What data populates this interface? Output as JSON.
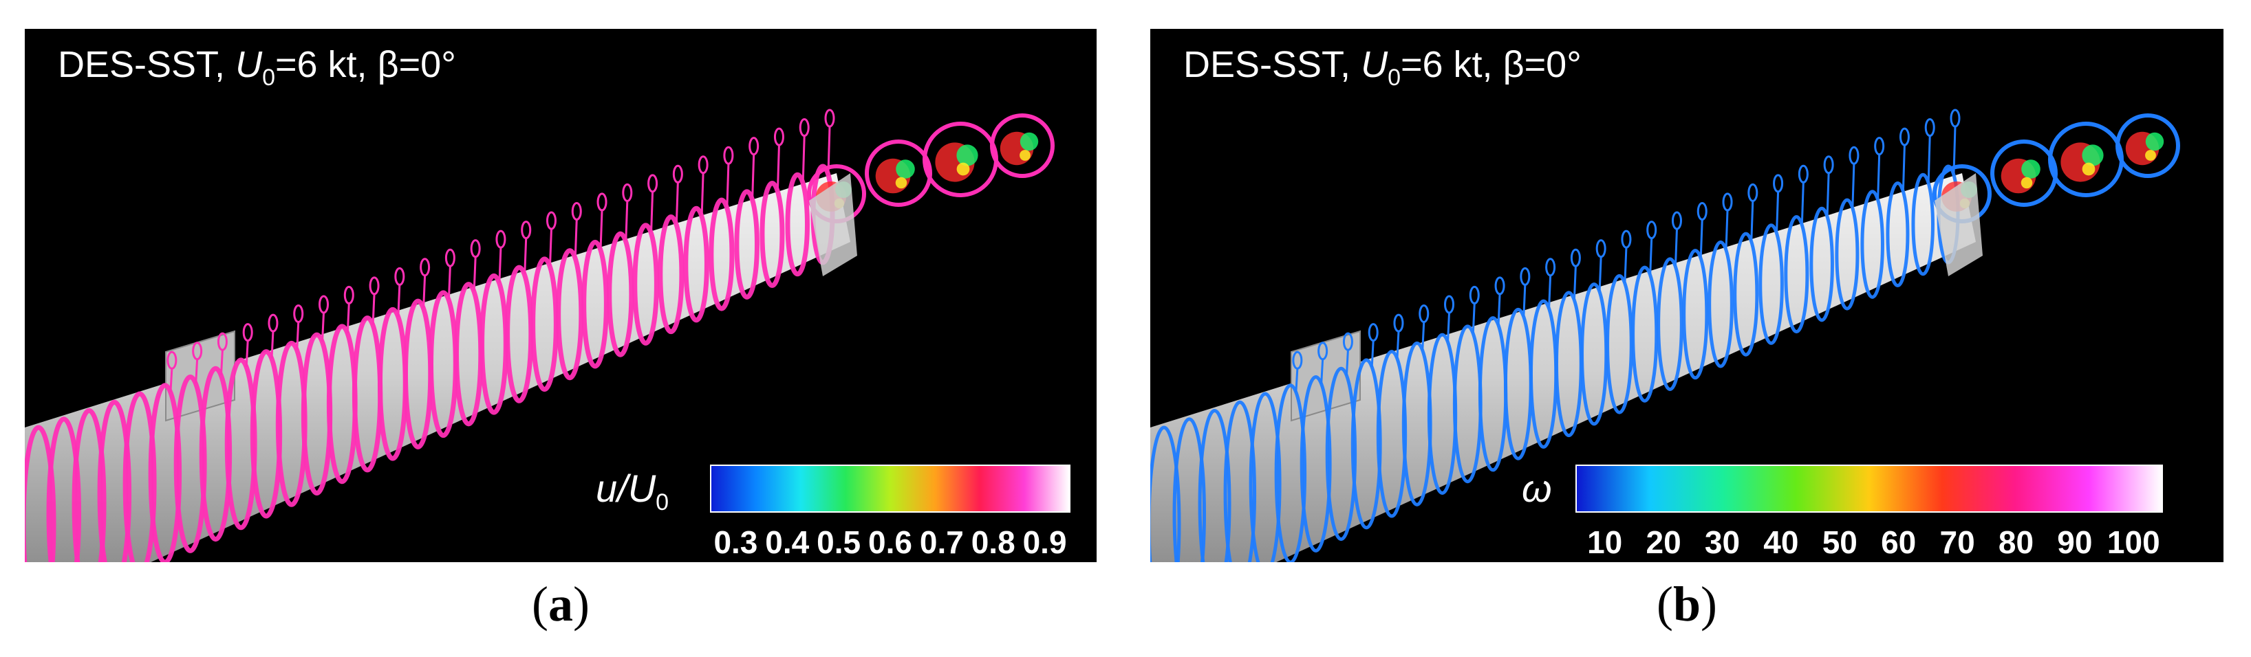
{
  "panels": [
    {
      "id": "a",
      "title": {
        "method": "DES-SST, ",
        "var": "U",
        "sub": "0",
        "rest": "=6 kt, β=0°"
      },
      "colorbar": {
        "label_var": "u/U",
        "label_sub": "0",
        "ticks": [
          "0.3",
          "0.4",
          "0.5",
          "0.6",
          "0.7",
          "0.8",
          "0.9"
        ],
        "colors": [
          "#0b1fd6",
          "#0a86ff",
          "#19e6f0",
          "#27e85a",
          "#b8ee1d",
          "#ffa21b",
          "#ff1d52",
          "#ff3fd6",
          "#ffffff"
        ]
      },
      "caption": {
        "letter": "a"
      }
    },
    {
      "id": "b",
      "title": {
        "method": "DES-SST, ",
        "var": "U",
        "sub": "0",
        "rest": "=6 kt, β=0°"
      },
      "colorbar": {
        "label_var": "ω",
        "label_sub": "",
        "ticks": [
          "10",
          "20",
          "30",
          "40",
          "50",
          "60",
          "70",
          "80",
          "90",
          "100"
        ],
        "colors": [
          "#0c18d0",
          "#11c8ff",
          "#1bee9a",
          "#66ea17",
          "#ffcc12",
          "#ff3a1b",
          "#ff1a8a",
          "#ff3dff",
          "#ffffff"
        ]
      },
      "caption": {
        "letter": "b"
      }
    }
  ],
  "visual": {
    "rings_a": "#ff2fb5",
    "rings_b": "#1f7cff"
  }
}
